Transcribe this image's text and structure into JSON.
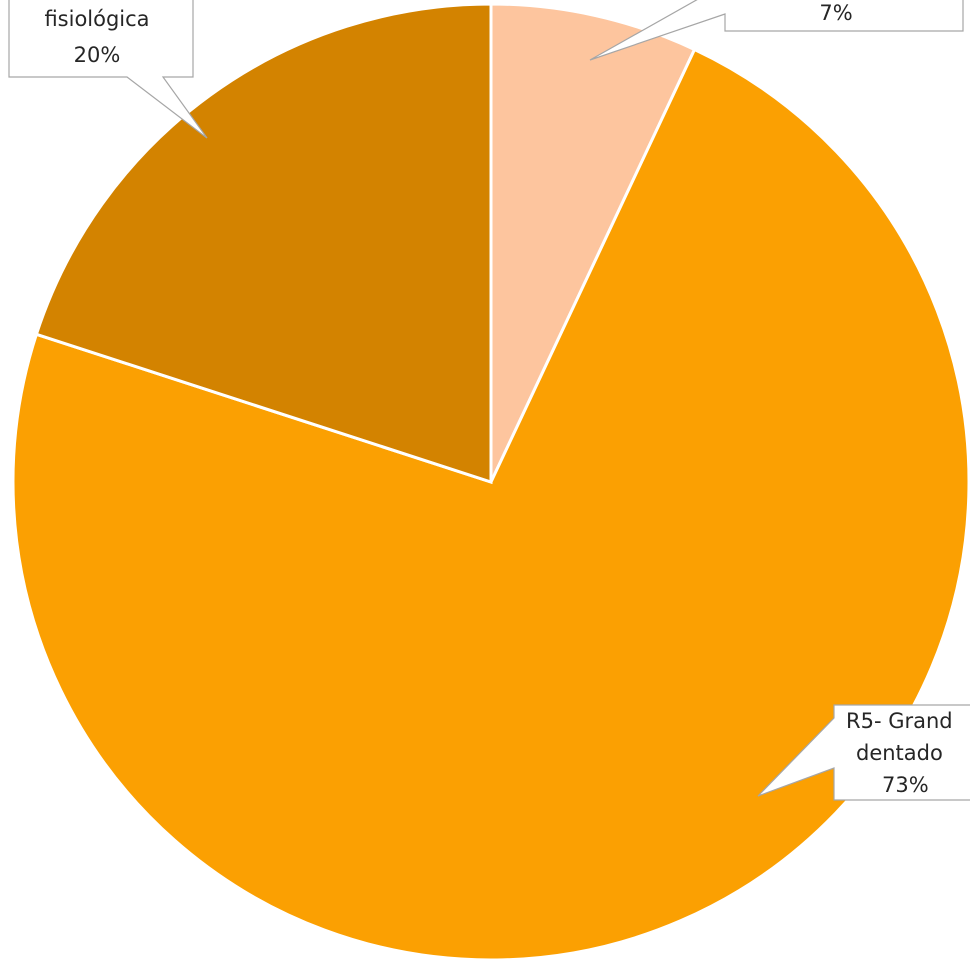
{
  "chart_data": {
    "type": "pie",
    "values": [
      7,
      73,
      20
    ],
    "colors": [
      "#FDC59E",
      "#FBA002",
      "#D38300"
    ],
    "labels": [
      {
        "lines": [
          "7%"
        ]
      },
      {
        "lines": [
          "R5- Grand",
          "dentado",
          "73%"
        ]
      },
      {
        "lines": [
          "fisiológica",
          "20%"
        ]
      }
    ]
  }
}
